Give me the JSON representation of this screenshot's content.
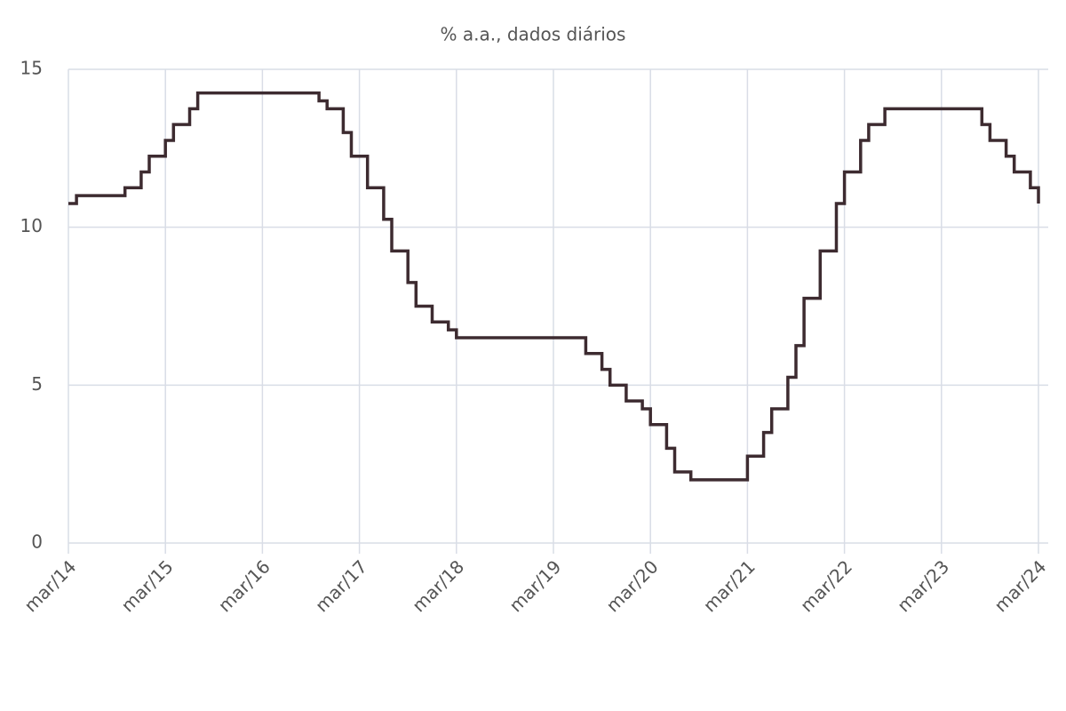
{
  "chart_data": {
    "type": "line",
    "title": "% a.a., dados diários",
    "step": "after",
    "grid": true,
    "xlim": [
      "2014-03",
      "2024-03"
    ],
    "xticks": [
      {
        "value": "2014-03",
        "label": "mar/14"
      },
      {
        "value": "2015-03",
        "label": "mar/15"
      },
      {
        "value": "2016-03",
        "label": "mar/16"
      },
      {
        "value": "2017-03",
        "label": "mar/17"
      },
      {
        "value": "2018-03",
        "label": "mar/18"
      },
      {
        "value": "2019-03",
        "label": "mar/19"
      },
      {
        "value": "2020-03",
        "label": "mar/20"
      },
      {
        "value": "2021-03",
        "label": "mar/21"
      },
      {
        "value": "2022-03",
        "label": "mar/22"
      },
      {
        "value": "2023-03",
        "label": "mar/23"
      },
      {
        "value": "2024-03",
        "label": "mar/24"
      }
    ],
    "ylim": [
      0,
      15
    ],
    "yticks": [
      0,
      5,
      10,
      15
    ],
    "x": [
      "2014-03",
      "2014-04",
      "2014-10",
      "2014-12",
      "2015-01",
      "2015-03",
      "2015-04",
      "2015-06",
      "2015-07",
      "2016-10",
      "2016-11",
      "2017-01",
      "2017-02",
      "2017-04",
      "2017-06",
      "2017-07",
      "2017-09",
      "2017-10",
      "2017-12",
      "2018-02",
      "2018-03",
      "2019-07",
      "2019-09",
      "2019-10",
      "2019-12",
      "2020-02",
      "2020-03",
      "2020-05",
      "2020-06",
      "2020-08",
      "2021-03",
      "2021-05",
      "2021-06",
      "2021-08",
      "2021-09",
      "2021-10",
      "2021-12",
      "2022-02",
      "2022-03",
      "2022-05",
      "2022-06",
      "2022-08",
      "2023-08",
      "2023-09",
      "2023-11",
      "2023-12",
      "2024-02",
      "2024-03"
    ],
    "values": [
      10.75,
      11,
      11.25,
      11.75,
      12.25,
      12.75,
      13.25,
      13.75,
      14.25,
      14,
      13.75,
      13,
      12.25,
      11.25,
      10.25,
      9.25,
      8.25,
      7.5,
      7,
      6.75,
      6.5,
      6,
      5.5,
      5,
      4.5,
      4.25,
      3.75,
      3,
      2.25,
      2,
      2.75,
      3.5,
      4.25,
      5.25,
      6.25,
      7.75,
      9.25,
      10.75,
      11.75,
      12.75,
      13.25,
      13.75,
      13.25,
      12.75,
      12.25,
      11.75,
      11.25,
      10.75
    ],
    "color": "#3d2b30"
  }
}
